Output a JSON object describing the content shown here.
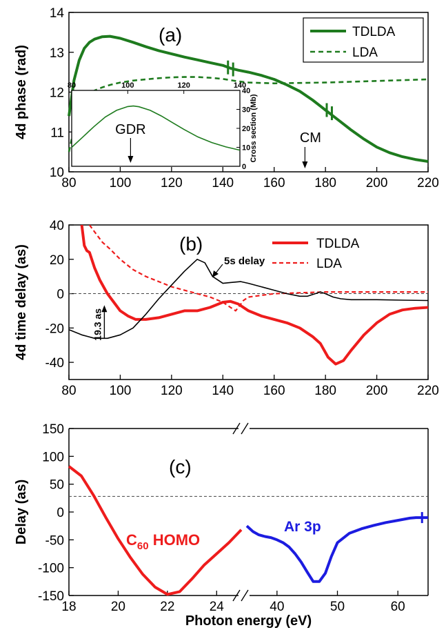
{
  "chart_data": [
    {
      "type": "line",
      "panel_label": "(a)",
      "ylabel": "4d phase (rad)",
      "xlim": [
        80,
        220
      ],
      "ylim": [
        10,
        14
      ],
      "xticks": [
        80,
        100,
        120,
        140,
        160,
        180,
        200,
        220
      ],
      "yticks": [
        10,
        11,
        12,
        13,
        14
      ],
      "legend_position": "top-right",
      "series": [
        {
          "name": "TDLDA",
          "color": "#1e7b1e",
          "style": "solid",
          "x": [
            80,
            82,
            84,
            86,
            88,
            90,
            93,
            96,
            100,
            105,
            110,
            115,
            120,
            125,
            130,
            135,
            140,
            143,
            146,
            150,
            155,
            160,
            165,
            170,
            175,
            178,
            180,
            182,
            185,
            190,
            195,
            200,
            205,
            210,
            215,
            220
          ],
          "y": [
            11.4,
            12.3,
            12.8,
            13.1,
            13.25,
            13.33,
            13.39,
            13.4,
            13.35,
            13.25,
            13.14,
            13.04,
            12.96,
            12.88,
            12.81,
            12.74,
            12.67,
            12.6,
            12.55,
            12.5,
            12.42,
            12.32,
            12.18,
            12.02,
            11.8,
            11.65,
            11.55,
            11.45,
            11.3,
            11.05,
            10.82,
            10.62,
            10.48,
            10.38,
            10.31,
            10.26
          ]
        },
        {
          "name": "LDA",
          "color": "#1e7b1e",
          "style": "dashed",
          "x": [
            80,
            82,
            84,
            86,
            88,
            90,
            93,
            96,
            100,
            105,
            110,
            115,
            120,
            125,
            130,
            135,
            140,
            143,
            146,
            150,
            160,
            170,
            180,
            190,
            200,
            210,
            220
          ],
          "y": [
            10.5,
            11.1,
            11.55,
            11.8,
            11.95,
            12.04,
            12.12,
            12.18,
            12.24,
            12.29,
            12.32,
            12.35,
            12.37,
            12.38,
            12.38,
            12.36,
            12.33,
            12.3,
            12.27,
            12.24,
            12.22,
            12.23,
            12.24,
            12.26,
            12.28,
            12.3,
            12.32
          ]
        }
      ],
      "annotations": [
        {
          "text": "CM",
          "x": 172,
          "arrow_to_y": 10.05
        }
      ],
      "inset": {
        "ylabel": "Cross section (Mb)",
        "xlim": [
          80,
          140
        ],
        "ylim": [
          0,
          40
        ],
        "xticks": [
          80,
          100,
          120,
          140
        ],
        "yticks": [
          0,
          10,
          20,
          30,
          40
        ],
        "annotation": "GDR",
        "annotation_x": 101,
        "series": [
          {
            "color": "#1e7b1e",
            "x": [
              80,
              84,
              88,
              92,
              96,
              100,
              102,
              104,
              108,
              112,
              116,
              120,
              125,
              130,
              135,
              140
            ],
            "y": [
              10,
              15.5,
              21,
              26,
              29.5,
              31.5,
              31.8,
              31.4,
              29.5,
              26.5,
              23,
              19.5,
              15.5,
              12.5,
              10.2,
              8.5
            ]
          }
        ]
      }
    },
    {
      "type": "line",
      "panel_label": "(b)",
      "ylabel": "4d time delay (as)",
      "xlim": [
        80,
        220
      ],
      "ylim": [
        -50,
        40
      ],
      "xticks": [
        80,
        100,
        120,
        140,
        160,
        180,
        200,
        220
      ],
      "yticks": [
        -40,
        -20,
        0,
        20,
        40
      ],
      "legend_position": "top-right",
      "reference_line_y": 0,
      "series": [
        {
          "name": "TDLDA",
          "color": "#ee1c1c",
          "style": "solid",
          "x": [
            85,
            86,
            87,
            88,
            90,
            92,
            95,
            98,
            100,
            103,
            106,
            110,
            115,
            120,
            125,
            130,
            135,
            140,
            143,
            146,
            150,
            155,
            160,
            165,
            170,
            175,
            178,
            181,
            184,
            187,
            190,
            195,
            200,
            205,
            210,
            215,
            220
          ],
          "y": [
            40,
            28,
            25,
            24,
            15,
            8,
            0,
            -6,
            -10,
            -13,
            -15,
            -15,
            -14,
            -12,
            -10,
            -10,
            -8,
            -5,
            -4.5,
            -6,
            -10,
            -13,
            -15,
            -17,
            -20,
            -25,
            -29,
            -37,
            -41,
            -39,
            -33,
            -24,
            -17,
            -12,
            -9.5,
            -8.5,
            -8
          ]
        },
        {
          "name": "LDA",
          "color": "#ee1c1c",
          "style": "dashed",
          "x": [
            88,
            90,
            93,
            96,
            100,
            105,
            110,
            115,
            120,
            125,
            130,
            135,
            140,
            143,
            145,
            148,
            150,
            155,
            160,
            170,
            180,
            190,
            200,
            210,
            220
          ],
          "y": [
            40,
            36,
            30,
            26,
            20,
            14,
            10,
            7,
            4,
            2,
            0,
            -2,
            -5,
            -8,
            -10,
            -4,
            -2,
            -1,
            0,
            0.5,
            1,
            1,
            1,
            1,
            1
          ]
        },
        {
          "name": "5s delay",
          "color": "#000000",
          "style": "solid",
          "x": [
            80,
            85,
            90,
            95,
            100,
            105,
            110,
            115,
            120,
            125,
            130,
            133,
            136,
            140,
            143,
            147,
            150,
            155,
            160,
            165,
            170,
            173,
            176,
            178,
            180,
            183,
            186,
            190,
            200,
            210,
            220
          ],
          "y": [
            -21,
            -24,
            -26,
            -26,
            -24,
            -20,
            -12,
            -3,
            5,
            13,
            20,
            18,
            10,
            6,
            6.5,
            7,
            6,
            4,
            2,
            0,
            -1.5,
            -1.5,
            0,
            1,
            0,
            -2,
            -3,
            -3.5,
            -3.5,
            -3.8,
            -4
          ]
        }
      ],
      "annotations": [
        {
          "text": "5s delay",
          "x": 150,
          "y": 10
        },
        {
          "text": "19.3 as",
          "x": 93,
          "from_y": -26,
          "to_y": -6.7
        }
      ]
    },
    {
      "type": "line",
      "panel_label": "(c)",
      "ylabel": "Delay (as)",
      "xlabel": "Photon energy (eV)",
      "ylim": [
        -150,
        150
      ],
      "yticks": [
        -150,
        -100,
        -50,
        0,
        50,
        100,
        150
      ],
      "reference_line_y": 28,
      "broken_axis": true,
      "segments": [
        {
          "xlim": [
            18,
            25
          ],
          "xticks": [
            18,
            20,
            22,
            24
          ]
        },
        {
          "xlim": [
            35,
            65
          ],
          "xticks": [
            40,
            50,
            60
          ]
        }
      ],
      "series": [
        {
          "name": "C60 HOMO",
          "color": "#ee1c1c",
          "segment": 0,
          "x": [
            18,
            18.5,
            19,
            19.5,
            20,
            20.5,
            21,
            21.5,
            22,
            22.5,
            23,
            23.5,
            24,
            24.5,
            25
          ],
          "y": [
            82,
            65,
            30,
            -10,
            -48,
            -82,
            -112,
            -135,
            -148,
            -143,
            -120,
            -95,
            -75,
            -55,
            -32
          ]
        },
        {
          "name": "Ar 3p",
          "color": "#1c1ce0",
          "segment": 1,
          "x": [
            35,
            36,
            37,
            38,
            39,
            40,
            41,
            42,
            43,
            44,
            45,
            46,
            47,
            48,
            49,
            50,
            52,
            54,
            56,
            58,
            60,
            62,
            63,
            64,
            65
          ],
          "y": [
            -25,
            -35,
            -41,
            -44,
            -46,
            -50,
            -55,
            -63,
            -75,
            -90,
            -108,
            -125,
            -125,
            -110,
            -80,
            -55,
            -38,
            -30,
            -24,
            -19,
            -15,
            -11,
            -10,
            -10,
            -10
          ]
        }
      ],
      "labels": [
        {
          "text": "C",
          "sub": "60",
          "rest": " HOMO",
          "color": "#ee1c1c"
        },
        {
          "text": "Ar 3p",
          "color": "#1c1ce0"
        }
      ]
    }
  ]
}
